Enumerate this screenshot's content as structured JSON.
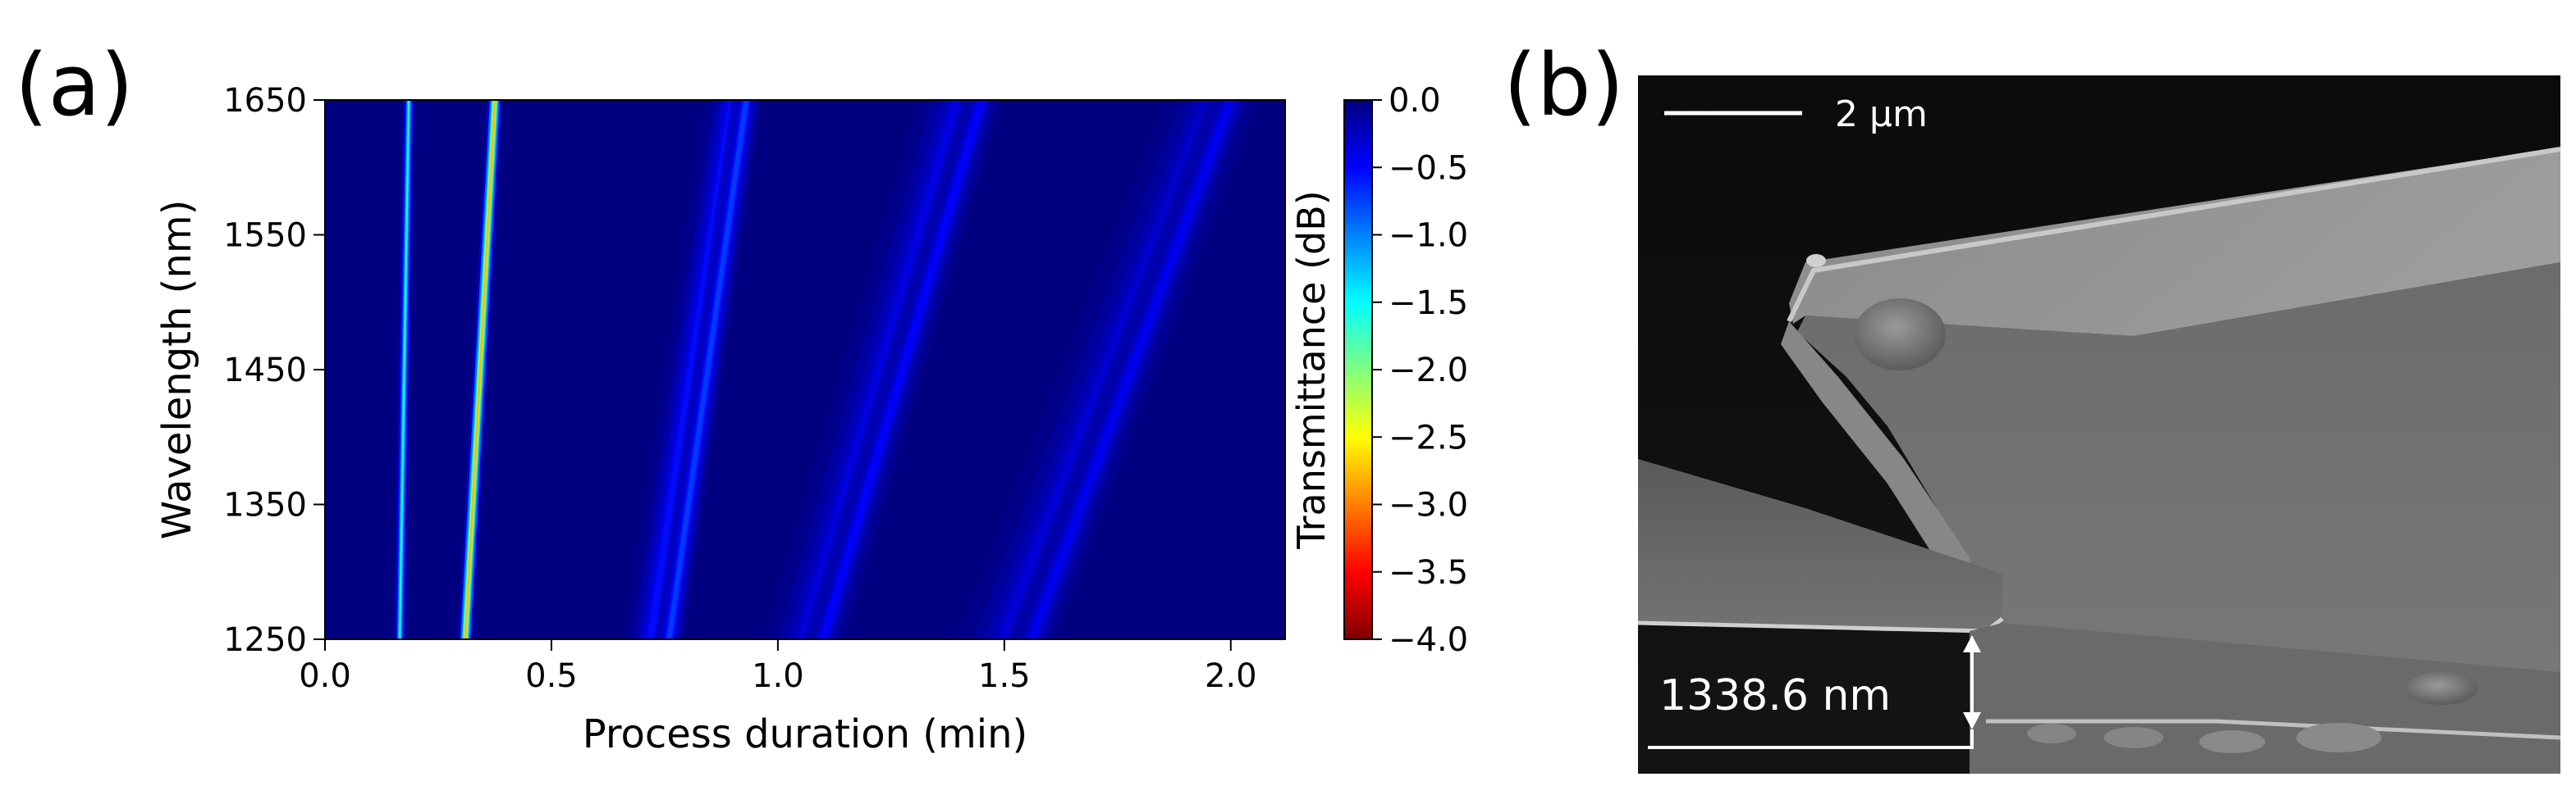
{
  "panel_a": {
    "label": "(a)",
    "chart_data": {
      "type": "heatmap",
      "xlabel": "Process duration (min)",
      "ylabel": "Wavelength (nm)",
      "xlim": [
        0.0,
        2.12
      ],
      "ylim": [
        1250,
        1650
      ],
      "xticks": [
        0.0,
        0.5,
        1.0,
        1.5,
        2.0
      ],
      "xtick_labels": [
        "0.0",
        "0.5",
        "1.0",
        "1.5",
        "2.0"
      ],
      "yticks": [
        1250,
        1350,
        1450,
        1550,
        1650
      ],
      "ytick_labels": [
        "1250",
        "1350",
        "1450",
        "1550",
        "1650"
      ],
      "background_value_db": 0.0,
      "resonance_bands": [
        {
          "t_at_1250nm": 0.165,
          "t_at_1650nm": 0.185,
          "min_db": -1.6,
          "width_min": 0.009
        },
        {
          "t_at_1250nm": 0.31,
          "t_at_1650nm": 0.375,
          "min_db": -2.8,
          "width_min": 0.011
        },
        {
          "t_at_1250nm": 0.72,
          "t_at_1650nm": 0.9,
          "min_db": -0.55,
          "width_min": 0.04
        },
        {
          "t_at_1250nm": 0.76,
          "t_at_1650nm": 0.93,
          "min_db": -0.75,
          "width_min": 0.022
        },
        {
          "t_at_1250nm": 1.06,
          "t_at_1650nm": 1.4,
          "min_db": -0.4,
          "width_min": 0.06
        },
        {
          "t_at_1250nm": 1.1,
          "t_at_1650nm": 1.45,
          "min_db": -0.5,
          "width_min": 0.03
        },
        {
          "t_at_1250nm": 1.5,
          "t_at_1650nm": 1.96,
          "min_db": -0.35,
          "width_min": 0.07
        },
        {
          "t_at_1250nm": 1.56,
          "t_at_1650nm": 2.0,
          "min_db": -0.45,
          "width_min": 0.035
        }
      ],
      "colorbar": {
        "label": "Transmittance (dB)",
        "vmin": -4.0,
        "vmax": 0.0,
        "ticks": [
          0.0,
          -0.5,
          -1.0,
          -1.5,
          -2.0,
          -2.5,
          -3.0,
          -3.5,
          -4.0
        ],
        "tick_labels": [
          "0.0",
          "−0.5",
          "−1.0",
          "−1.5",
          "−2.0",
          "−2.5",
          "−3.0",
          "−3.5",
          "−4.0"
        ],
        "colormap": "jet_reversed",
        "colors": [
          "#800000",
          "#ff0000",
          "#ff8000",
          "#ffff00",
          "#80ff80",
          "#00ffff",
          "#0080ff",
          "#0000ff",
          "#000080"
        ]
      }
    }
  },
  "panel_b": {
    "label": "(b)",
    "image_type": "SEM micrograph",
    "scale_bar_label": "2 μm",
    "measurement_label": "1338.6 nm"
  }
}
